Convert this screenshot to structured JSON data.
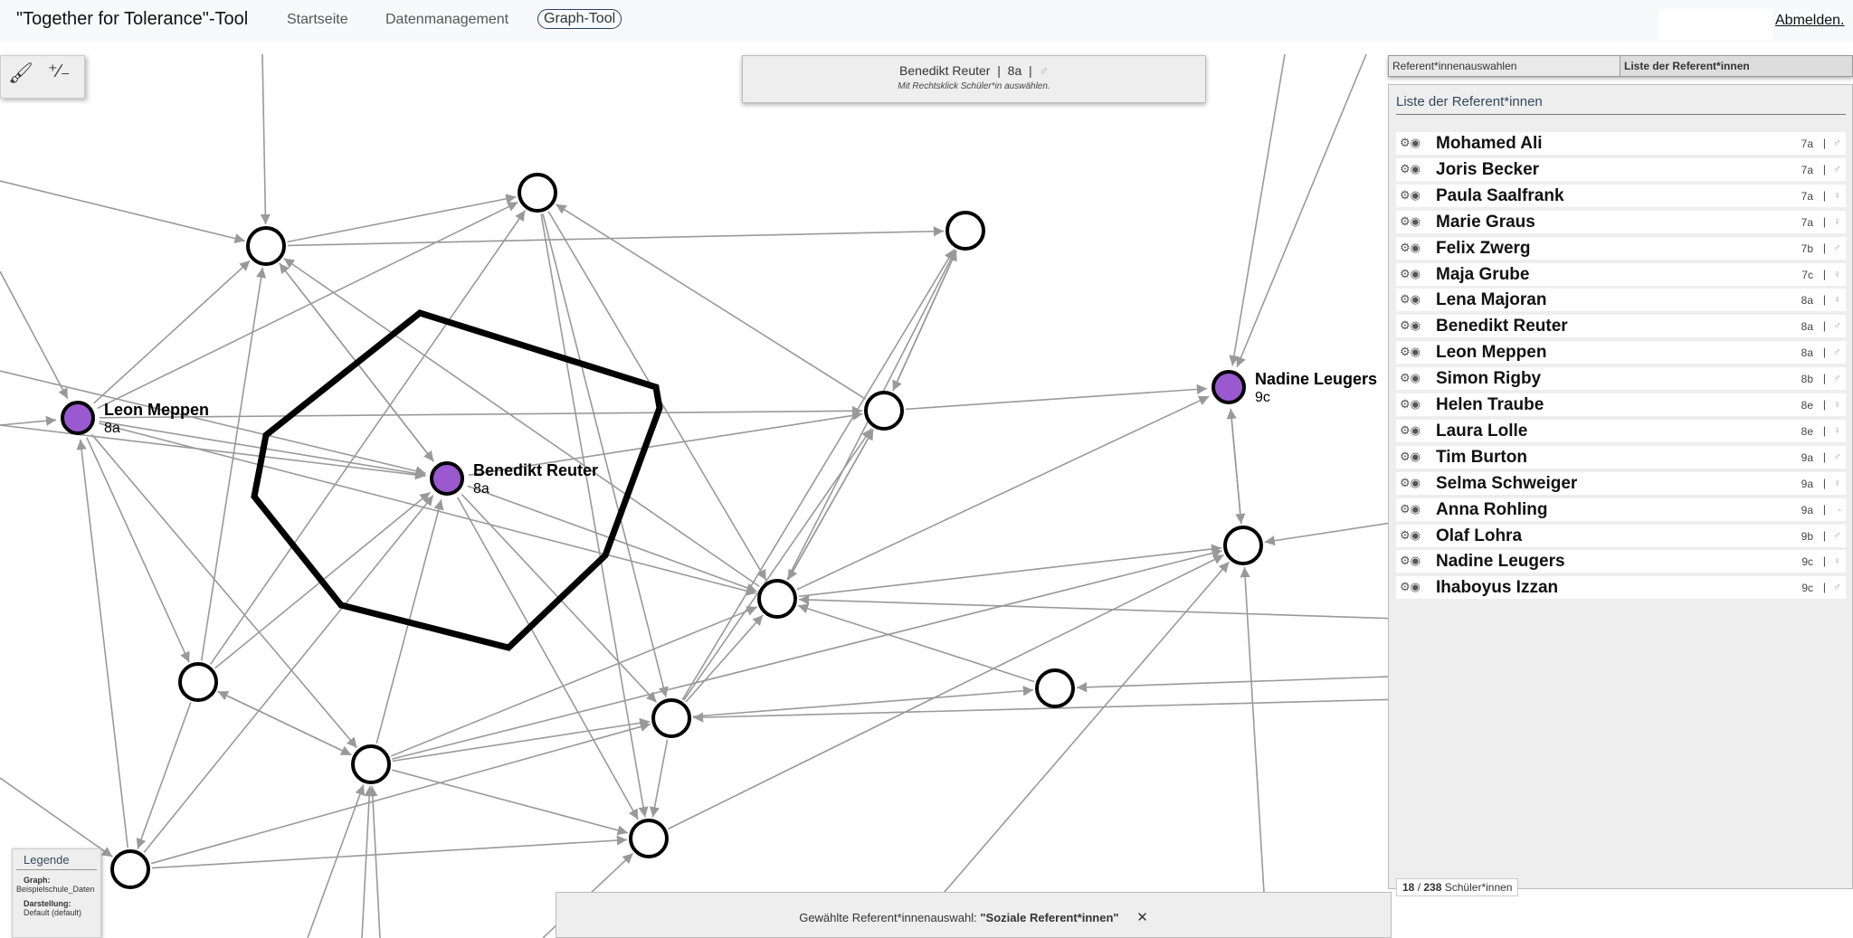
{
  "header": {
    "title": "\"Together for Tolerance\"-Tool",
    "nav": [
      "Startseite",
      "Datenmanagement",
      "Graph-Tool"
    ],
    "active_nav": "Graph-Tool",
    "logout": "Abmelden."
  },
  "toolbar": {
    "icons": [
      "paint-bucket-icon",
      "plus-minus-icon"
    ]
  },
  "info": {
    "name": "Benedikt Reuter",
    "class": "8a",
    "gender": "♂",
    "hint": "Mit Rechtsklick Schüler*in auswählen."
  },
  "panel": {
    "tabs": [
      "Referent*innenauswahlen",
      "Liste der Referent*innen"
    ],
    "active_tab": "Liste der Referent*innen",
    "title": "Liste der Referent*innen",
    "rows": [
      {
        "name": "Mohamed Ali",
        "class": "7a",
        "gender": "♂"
      },
      {
        "name": "Joris Becker",
        "class": "7a",
        "gender": "♂"
      },
      {
        "name": "Paula Saalfrank",
        "class": "7a",
        "gender": "♀"
      },
      {
        "name": "Marie Graus",
        "class": "7a",
        "gender": "♀"
      },
      {
        "name": "Felix Zwerg",
        "class": "7b",
        "gender": "♂"
      },
      {
        "name": "Maja Grube",
        "class": "7c",
        "gender": "♀"
      },
      {
        "name": "Lena Majoran",
        "class": "8a",
        "gender": "♀"
      },
      {
        "name": "Benedikt Reuter",
        "class": "8a",
        "gender": "♂"
      },
      {
        "name": "Leon Meppen",
        "class": "8a",
        "gender": "♂"
      },
      {
        "name": "Simon Rigby",
        "class": "8b",
        "gender": "♂"
      },
      {
        "name": "Helen Traube",
        "class": "8e",
        "gender": "♀"
      },
      {
        "name": "Laura Lolle",
        "class": "8e",
        "gender": "♀"
      },
      {
        "name": "Tim Burton",
        "class": "9a",
        "gender": "♂"
      },
      {
        "name": "Selma Schweiger",
        "class": "9a",
        "gender": "♀"
      },
      {
        "name": "Anna Rohling",
        "class": "9a",
        "gender": "-"
      },
      {
        "name": "Olaf Lohra",
        "class": "9b",
        "gender": "♂"
      },
      {
        "name": "Nadine Leugers",
        "class": "9c",
        "gender": "♀"
      },
      {
        "name": "Ihaboyus Izzan",
        "class": "9c",
        "gender": "♂"
      }
    ],
    "count_shown": "18",
    "count_total": "238",
    "count_unit": "Schüler*innen"
  },
  "graph": {
    "labeled_nodes": [
      {
        "name": "Leon Meppen",
        "class": "8a"
      },
      {
        "name": "Benedikt Reuter",
        "class": "8a"
      },
      {
        "name": "Nadine Leugers",
        "class": "9c"
      }
    ],
    "colors": {
      "highlight": "#9b59d0",
      "edge": "#999999",
      "node_stroke": "#000000",
      "selection": "#000000"
    }
  },
  "legend": {
    "title": "Legende",
    "graph_label": "Graph:",
    "graph_value": "Beispielschule_Daten",
    "view_label": "Darstellung:",
    "view_value": "Default (default)"
  },
  "bottombar": {
    "prefix": "Gewählte Referent*innenauswahl: ",
    "selection": "\"Soziale Referent*innen\"",
    "close": "✕"
  }
}
